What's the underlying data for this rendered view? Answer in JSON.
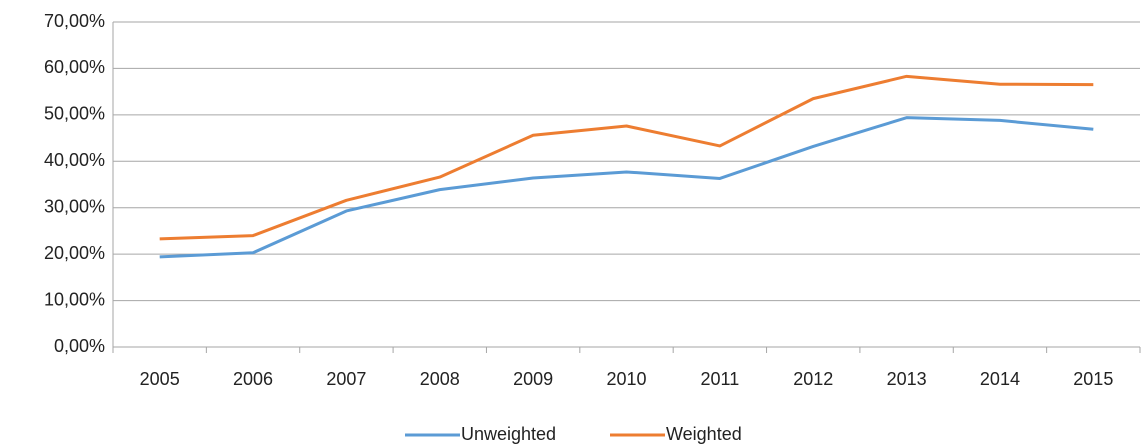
{
  "chart_data": {
    "type": "line",
    "categories": [
      "2005",
      "2006",
      "2007",
      "2008",
      "2009",
      "2010",
      "2011",
      "2012",
      "2013",
      "2014",
      "2015"
    ],
    "series": [
      {
        "name": "Unweighted",
        "color": "#5b9bd5",
        "values": [
          19.4,
          20.3,
          29.3,
          33.9,
          36.4,
          37.7,
          36.3,
          43.2,
          49.4,
          48.8,
          46.9
        ]
      },
      {
        "name": "Weighted",
        "color": "#ed7d31",
        "values": [
          23.3,
          24.0,
          31.6,
          36.6,
          45.6,
          47.6,
          43.3,
          53.5,
          58.3,
          56.6,
          56.5
        ]
      }
    ],
    "ylim": [
      0,
      70
    ],
    "yticks": [
      {
        "value": 0,
        "label": "0,00%"
      },
      {
        "value": 10,
        "label": "10,00%"
      },
      {
        "value": 20,
        "label": "20,00%"
      },
      {
        "value": 30,
        "label": "30,00%"
      },
      {
        "value": 40,
        "label": "40,00%"
      },
      {
        "value": 50,
        "label": "50,00%"
      },
      {
        "value": 60,
        "label": "60,00%"
      },
      {
        "value": 70,
        "label": "70,00%"
      }
    ],
    "grid": true,
    "legend": "bottom"
  }
}
